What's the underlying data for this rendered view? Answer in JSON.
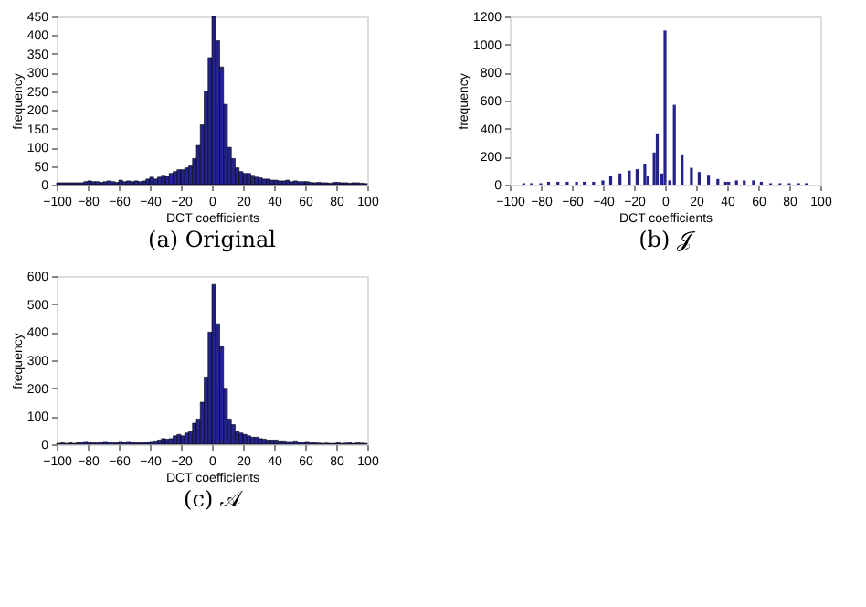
{
  "chart_data": [
    {
      "type": "histogram",
      "title": "(a) Original",
      "xlabel": "DCT coefficients",
      "ylabel": "frequency",
      "color": "#23238a",
      "grid": false,
      "bins": [
        -100,
        -97.5,
        -95,
        -92.5,
        -90,
        -87.5,
        -85,
        -82.5,
        -80,
        -77.5,
        -75,
        -72.5,
        -70,
        -67.5,
        -65,
        -62.5,
        -60,
        -57.5,
        -55,
        -52.5,
        -50,
        -47.5,
        -45,
        -42.5,
        -40,
        -37.5,
        -35,
        -32.5,
        -30,
        -27.5,
        -25,
        -22.5,
        -20,
        -17.5,
        -15,
        -12.5,
        -10,
        -7.5,
        -5,
        -2.5,
        0,
        2.5,
        5,
        7.5,
        10,
        12.5,
        15,
        17.5,
        20,
        22.5,
        25,
        27.5,
        30,
        32.5,
        35,
        37.5,
        40,
        42.5,
        45,
        47.5,
        50,
        52.5,
        55,
        57.5,
        60,
        62.5,
        65,
        67.5,
        70,
        72.5,
        75,
        77.5,
        80,
        82.5,
        85,
        87.5,
        90,
        92.5,
        95,
        97.5,
        100
      ],
      "values": [
        5,
        5,
        5,
        5,
        5,
        5,
        5,
        8,
        10,
        8,
        8,
        6,
        8,
        10,
        8,
        6,
        12,
        8,
        10,
        8,
        10,
        8,
        10,
        15,
        20,
        15,
        20,
        25,
        22,
        30,
        35,
        40,
        40,
        45,
        50,
        70,
        105,
        160,
        250,
        340,
        450,
        385,
        315,
        215,
        100,
        70,
        45,
        35,
        30,
        30,
        25,
        20,
        18,
        15,
        15,
        12,
        12,
        10,
        10,
        12,
        8,
        10,
        8,
        8,
        8,
        6,
        5,
        6,
        5,
        5,
        4,
        6,
        6,
        5,
        5,
        4,
        5,
        5,
        4,
        3
      ],
      "xlim": [
        -100,
        100
      ],
      "xticks": [
        -100,
        -80,
        -60,
        -40,
        -20,
        0,
        20,
        40,
        60,
        80,
        100
      ],
      "ylim": [
        0,
        450
      ],
      "yticks": [
        0,
        50,
        100,
        150,
        200,
        250,
        300,
        350,
        400,
        450
      ]
    },
    {
      "type": "bar",
      "title": "(b) 𝒥",
      "xlabel": "DCT coefficients",
      "ylabel": "frequency",
      "color": "#23238a",
      "grid": false,
      "x": [
        -91,
        -86,
        -80,
        -75,
        -69,
        -63,
        -57,
        -52,
        -46,
        -40,
        -35,
        -29,
        -23,
        -18,
        -13,
        -11,
        -7,
        -5,
        -2,
        0,
        3,
        6,
        11,
        17,
        22,
        28,
        34,
        39,
        41,
        46,
        51,
        57,
        62,
        68,
        74,
        80,
        86,
        91
      ],
      "values": [
        10,
        10,
        10,
        20,
        20,
        20,
        20,
        20,
        20,
        30,
        60,
        80,
        100,
        110,
        150,
        60,
        230,
        360,
        80,
        1100,
        30,
        570,
        210,
        120,
        90,
        70,
        40,
        20,
        20,
        30,
        30,
        30,
        20,
        10,
        10,
        10,
        10,
        10
      ],
      "xlim": [
        -100,
        100
      ],
      "xticks": [
        -100,
        -80,
        -60,
        -40,
        -20,
        0,
        20,
        40,
        60,
        80,
        100
      ],
      "ylim": [
        0,
        1200
      ],
      "yticks": [
        0,
        200,
        400,
        600,
        800,
        1000,
        1200
      ]
    },
    {
      "type": "histogram",
      "title": "(c) 𝒜",
      "xlabel": "DCT coefficients",
      "ylabel": "frequency",
      "color": "#23238a",
      "grid": false,
      "bins": [
        -100,
        -97.5,
        -95,
        -92.5,
        -90,
        -87.5,
        -85,
        -82.5,
        -80,
        -77.5,
        -75,
        -72.5,
        -70,
        -67.5,
        -65,
        -62.5,
        -60,
        -57.5,
        -55,
        -52.5,
        -50,
        -47.5,
        -45,
        -42.5,
        -40,
        -37.5,
        -35,
        -32.5,
        -30,
        -27.5,
        -25,
        -22.5,
        -20,
        -17.5,
        -15,
        -12.5,
        -10,
        -7.5,
        -5,
        -2.5,
        0,
        2.5,
        5,
        7.5,
        10,
        12.5,
        15,
        17.5,
        20,
        22.5,
        25,
        27.5,
        30,
        32.5,
        35,
        37.5,
        40,
        42.5,
        45,
        47.5,
        50,
        52.5,
        55,
        57.5,
        60,
        62.5,
        65,
        67.5,
        70,
        72.5,
        75,
        77.5,
        80,
        82.5,
        85,
        87.5,
        90,
        92.5,
        95,
        97.5,
        100
      ],
      "values": [
        3,
        5,
        3,
        5,
        3,
        5,
        8,
        10,
        8,
        5,
        5,
        8,
        10,
        8,
        5,
        5,
        10,
        8,
        10,
        8,
        5,
        5,
        8,
        8,
        10,
        12,
        15,
        20,
        18,
        20,
        30,
        35,
        30,
        40,
        45,
        75,
        90,
        150,
        240,
        400,
        570,
        430,
        350,
        200,
        90,
        70,
        45,
        40,
        35,
        30,
        25,
        25,
        20,
        18,
        15,
        15,
        15,
        12,
        12,
        10,
        10,
        12,
        8,
        8,
        10,
        5,
        5,
        4,
        3,
        4,
        3,
        3,
        5,
        3,
        4,
        5,
        3,
        5,
        4,
        3
      ],
      "xlim": [
        -100,
        100
      ],
      "xticks": [
        -100,
        -80,
        -60,
        -40,
        -20,
        0,
        20,
        40,
        60,
        80,
        100
      ],
      "ylim": [
        0,
        600
      ],
      "yticks": [
        0,
        100,
        200,
        300,
        400,
        500,
        600
      ]
    }
  ]
}
